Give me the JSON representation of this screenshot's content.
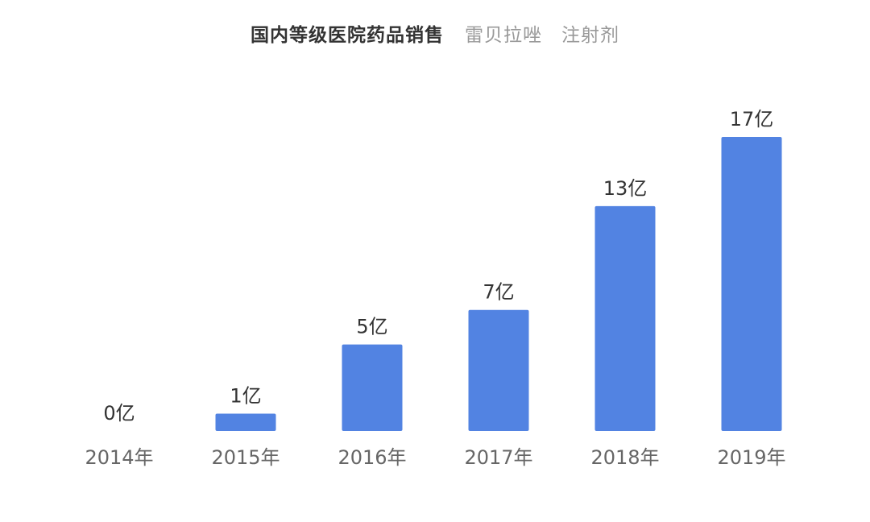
{
  "chart_data": {
    "type": "bar",
    "title": "国内等级医院药品销售",
    "subtitle": "雷贝拉唑　注射剂",
    "categories": [
      "2014年",
      "2015年",
      "2016年",
      "2017年",
      "2018年",
      "2019年"
    ],
    "values": [
      0,
      1,
      5,
      7,
      13,
      17
    ],
    "data_labels": [
      "0亿",
      "1亿",
      "5亿",
      "7亿",
      "13亿",
      "17亿"
    ],
    "unit": "亿",
    "xlabel": "",
    "ylabel": "",
    "ylim": [
      0,
      17
    ],
    "grid": false,
    "legend": "none",
    "colors": {
      "bar": "#5283E2",
      "title": "#333333",
      "subtitle": "#999999",
      "label": "#333333",
      "tick": "#666666"
    }
  }
}
